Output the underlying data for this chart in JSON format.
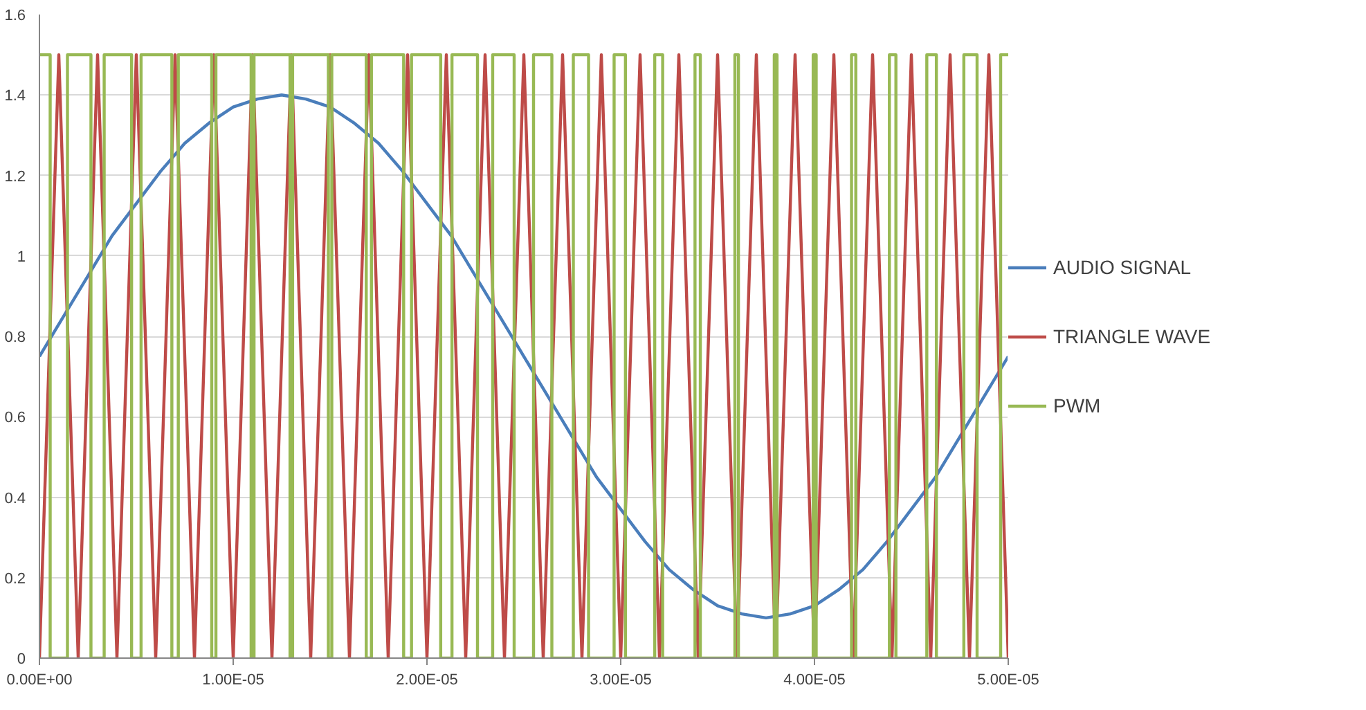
{
  "chart_data": {
    "type": "line",
    "xlim": [
      0,
      5e-05
    ],
    "ylim": [
      0,
      1.6
    ],
    "xticks": [
      {
        "value": 0,
        "label": "0.00E+00"
      },
      {
        "value": 1e-05,
        "label": "1.00E-05"
      },
      {
        "value": 2e-05,
        "label": "2.00E-05"
      },
      {
        "value": 3e-05,
        "label": "3.00E-05"
      },
      {
        "value": 4e-05,
        "label": "4.00E-05"
      },
      {
        "value": 5e-05,
        "label": "5.00E-05"
      }
    ],
    "yticks": [
      0,
      0.2,
      0.4,
      0.6,
      0.8,
      1,
      1.2,
      1.4,
      1.6
    ],
    "grid": "y",
    "legend": "right",
    "marker": "none",
    "line_style": "solid",
    "series": [
      {
        "name": "AUDIO SIGNAL",
        "color": "#4a7ebb",
        "x": [
          0,
          1.25e-06,
          2.5e-06,
          3.75e-06,
          5e-06,
          6.25e-06,
          7.5e-06,
          8.75e-06,
          1e-05,
          1.125e-05,
          1.25e-05,
          1.375e-05,
          1.5e-05,
          1.625e-05,
          1.75e-05,
          1.875e-05,
          2e-05,
          2.125e-05,
          2.25e-05,
          2.375e-05,
          2.5e-05,
          2.625e-05,
          2.75e-05,
          2.875e-05,
          3e-05,
          3.125e-05,
          3.25e-05,
          3.375e-05,
          3.5e-05,
          3.625e-05,
          3.75e-05,
          3.875e-05,
          4e-05,
          4.125e-05,
          4.25e-05,
          4.375e-05,
          4.5e-05,
          4.625e-05,
          4.75e-05,
          4.875e-05,
          5e-05
        ],
        "values": [
          0.75,
          0.85,
          0.95,
          1.05,
          1.13,
          1.21,
          1.28,
          1.33,
          1.37,
          1.39,
          1.4,
          1.39,
          1.37,
          1.33,
          1.28,
          1.21,
          1.13,
          1.05,
          0.95,
          0.85,
          0.75,
          0.65,
          0.55,
          0.45,
          0.37,
          0.29,
          0.22,
          0.17,
          0.13,
          0.11,
          0.1,
          0.11,
          0.13,
          0.17,
          0.22,
          0.29,
          0.37,
          0.45,
          0.55,
          0.65,
          0.75
        ]
      },
      {
        "name": "TRIANGLE WAVE",
        "color": "#be4b48",
        "x": [
          0,
          1e-06,
          2e-06,
          3e-06,
          4e-06,
          5e-06,
          6e-06,
          7e-06,
          8e-06,
          9e-06,
          1e-05,
          1.1e-05,
          1.2e-05,
          1.3e-05,
          1.4e-05,
          1.5e-05,
          1.6e-05,
          1.7e-05,
          1.8e-05,
          1.9e-05,
          2e-05,
          2.1e-05,
          2.2e-05,
          2.3e-05,
          2.4e-05,
          2.5e-05,
          2.6e-05,
          2.7e-05,
          2.8e-05,
          2.9e-05,
          3e-05,
          3.1e-05,
          3.2e-05,
          3.3e-05,
          3.4e-05,
          3.5e-05,
          3.6e-05,
          3.7e-05,
          3.8e-05,
          3.9e-05,
          4e-05,
          4.1e-05,
          4.2e-05,
          4.3e-05,
          4.4e-05,
          4.5e-05,
          4.6e-05,
          4.7e-05,
          4.8e-05,
          4.9e-05,
          5e-05
        ],
        "values": [
          0,
          1.5,
          0,
          1.5,
          0,
          1.5,
          0,
          1.5,
          0,
          1.5,
          0,
          1.5,
          0,
          1.5,
          0,
          1.5,
          0,
          1.5,
          0,
          1.5,
          0,
          1.5,
          0,
          1.5,
          0,
          1.5,
          0,
          1.5,
          0,
          1.5,
          0,
          1.5,
          0,
          1.5,
          0,
          1.5,
          0,
          1.5,
          0,
          1.5,
          0,
          1.5,
          0,
          1.5,
          0,
          1.5,
          0,
          1.5,
          0,
          1.5,
          0
        ]
      },
      {
        "name": "PWM",
        "color": "#98b954",
        "x": [
          0,
          5.54e-07,
          5.54e-07,
          1.446e-06,
          1.446e-06,
          2.659e-06,
          2.659e-06,
          3.341e-06,
          3.341e-06,
          4.755e-06,
          4.755e-06,
          5.245e-06,
          5.245e-06,
          6.834e-06,
          6.834e-06,
          7.166e-06,
          7.166e-06,
          8.892e-06,
          8.892e-06,
          9.108e-06,
          9.108e-06,
          1.0925e-05,
          1.0925e-05,
          1.1075e-05,
          1.1075e-05,
          1.2933e-05,
          1.2933e-05,
          1.3067e-05,
          1.3067e-05,
          1.4912e-05,
          1.4912e-05,
          1.5088e-05,
          1.5088e-05,
          1.6866e-05,
          1.6866e-05,
          1.7134e-05,
          1.7134e-05,
          1.8797e-05,
          1.8797e-05,
          1.9203e-05,
          1.9203e-05,
          2.0709e-05,
          2.0709e-05,
          2.1291e-05,
          2.1291e-05,
          2.2608e-05,
          2.2608e-05,
          2.3392e-05,
          2.3392e-05,
          2.45e-05,
          2.45e-05,
          2.55e-05,
          2.55e-05,
          2.6446e-05,
          2.6446e-05,
          2.7554e-05,
          2.7554e-05,
          2.8341e-05,
          2.8341e-05,
          2.9659e-05,
          2.9659e-05,
          3.0245e-05,
          3.0245e-05,
          3.1755e-05,
          3.1755e-05,
          3.2166e-05,
          3.2166e-05,
          3.3834e-05,
          3.3834e-05,
          3.4108e-05,
          3.4108e-05,
          3.5892e-05,
          3.5892e-05,
          3.6075e-05,
          3.6075e-05,
          3.7925e-05,
          3.7925e-05,
          3.8067e-05,
          3.8067e-05,
          3.9933e-05,
          3.9933e-05,
          4.0088e-05,
          4.0088e-05,
          4.1912e-05,
          4.1912e-05,
          4.2134e-05,
          4.2134e-05,
          4.3866e-05,
          4.3866e-05,
          4.4203e-05,
          4.4203e-05,
          4.5797e-05,
          4.5797e-05,
          4.6291e-05,
          4.6291e-05,
          4.7709e-05,
          4.7709e-05,
          4.8392e-05,
          4.8392e-05,
          4.9608e-05,
          4.9608e-05,
          5e-05
        ],
        "values": [
          1.5,
          1.5,
          0,
          0,
          1.5,
          1.5,
          0,
          0,
          1.5,
          1.5,
          0,
          0,
          1.5,
          1.5,
          0,
          0,
          1.5,
          1.5,
          0,
          0,
          1.5,
          1.5,
          0,
          0,
          1.5,
          1.5,
          0,
          0,
          1.5,
          1.5,
          0,
          0,
          1.5,
          1.5,
          0,
          0,
          1.5,
          1.5,
          0,
          0,
          1.5,
          1.5,
          0,
          0,
          1.5,
          1.5,
          0,
          0,
          1.5,
          1.5,
          0,
          0,
          1.5,
          1.5,
          0,
          0,
          1.5,
          1.5,
          0,
          0,
          1.5,
          1.5,
          0,
          0,
          1.5,
          1.5,
          0,
          0,
          1.5,
          1.5,
          0,
          0,
          1.5,
          1.5,
          0,
          0,
          1.5,
          1.5,
          0,
          0,
          1.5,
          1.5,
          0,
          0,
          1.5,
          1.5,
          0,
          0,
          1.5,
          1.5,
          0,
          0,
          1.5,
          1.5,
          0,
          0,
          1.5,
          1.5,
          0,
          0,
          1.5,
          1.5
        ]
      }
    ]
  }
}
